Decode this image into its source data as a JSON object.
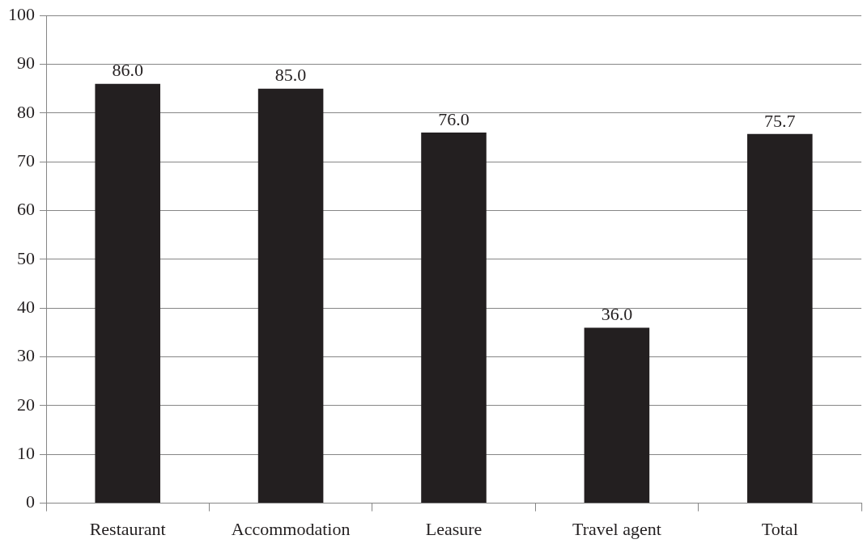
{
  "chart_data": {
    "type": "bar",
    "categories": [
      "Restaurant",
      "Accommodation",
      "Leasure",
      "Travel agent",
      "Total"
    ],
    "values": [
      86,
      85,
      76,
      36,
      75.7
    ],
    "value_labels": [
      "86.0",
      "85.0",
      "76.0",
      "36.0",
      "75.7"
    ],
    "color": "#231f20",
    "ylim": [
      0,
      100
    ],
    "yticks": [
      0,
      10,
      20,
      30,
      40,
      50,
      60,
      70,
      80,
      90,
      100
    ],
    "grid": "y",
    "legend": false
  }
}
